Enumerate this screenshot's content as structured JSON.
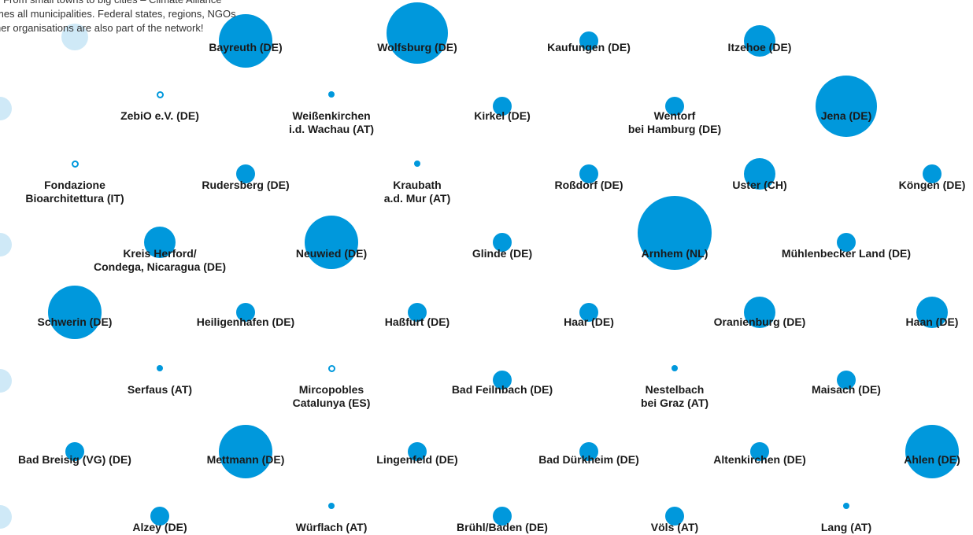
{
  "colors": {
    "bubble": "#0098dc",
    "faint_bubble": "#cfe9f7",
    "label_text": "#1a1a1a",
    "intro_text": "#333333"
  },
  "intro": {
    "lines": [
      "l. From small towns to big cities – Climate Alliance",
      "mes all municipalities. Federal states, regions, NGOs",
      "her organisations are also part of the network!"
    ]
  },
  "members": [
    {
      "lines": [
        "Bayreuth (DE)"
      ],
      "size": "large",
      "style": "filled"
    },
    {
      "lines": [
        "Wolfsburg (DE)"
      ],
      "size": "xlarge",
      "style": "filled"
    },
    {
      "lines": [
        "Kaufungen (DE)"
      ],
      "size": "small",
      "style": "filled"
    },
    {
      "lines": [
        "Itzehoe (DE)"
      ],
      "size": "medium",
      "style": "filled"
    },
    {
      "lines": [
        "ZebiO e.V. (DE)"
      ],
      "size": "tiny",
      "style": "ring"
    },
    {
      "lines": [
        "Weißenkirchen",
        "i.d. Wachau (AT)"
      ],
      "size": "dot",
      "style": "filled"
    },
    {
      "lines": [
        "Kirkel (DE)"
      ],
      "size": "small",
      "style": "filled"
    },
    {
      "lines": [
        "Wentorf",
        "bei Hamburg (DE)"
      ],
      "size": "small",
      "style": "filled"
    },
    {
      "lines": [
        "Jena (DE)"
      ],
      "size": "xlarge",
      "style": "filled"
    },
    {
      "lines": [
        "Fondazione",
        "Bioarchitettura (IT)"
      ],
      "size": "tiny",
      "style": "ring"
    },
    {
      "lines": [
        "Rudersberg (DE)"
      ],
      "size": "small",
      "style": "filled"
    },
    {
      "lines": [
        "Kraubath",
        "a.d. Mur (AT)"
      ],
      "size": "dot",
      "style": "filled"
    },
    {
      "lines": [
        "Roßdorf (DE)"
      ],
      "size": "small",
      "style": "filled"
    },
    {
      "lines": [
        "Uster (CH)"
      ],
      "size": "medium",
      "style": "filled"
    },
    {
      "lines": [
        "Köngen (DE)"
      ],
      "size": "small",
      "style": "filled"
    },
    {
      "lines": [
        "Kreis Herford/",
        "Condega, Nicaragua (DE)"
      ],
      "size": "medium",
      "style": "filled"
    },
    {
      "lines": [
        "Neuwied (DE)"
      ],
      "size": "large",
      "style": "filled"
    },
    {
      "lines": [
        "Glinde (DE)"
      ],
      "size": "small",
      "style": "filled"
    },
    {
      "lines": [
        "Arnhem (NL)"
      ],
      "size": "xxlarge",
      "style": "filled"
    },
    {
      "lines": [
        "Mühlenbecker Land (DE)"
      ],
      "size": "small",
      "style": "filled"
    },
    {
      "lines": [
        "Schwerin (DE)"
      ],
      "size": "large",
      "style": "filled"
    },
    {
      "lines": [
        "Heiligenhafen (DE)"
      ],
      "size": "small",
      "style": "filled"
    },
    {
      "lines": [
        "Haßfurt (DE)"
      ],
      "size": "small",
      "style": "filled"
    },
    {
      "lines": [
        "Haar (DE)"
      ],
      "size": "small",
      "style": "filled"
    },
    {
      "lines": [
        "Oranienburg (DE)"
      ],
      "size": "medium",
      "style": "filled"
    },
    {
      "lines": [
        "Haan (DE)"
      ],
      "size": "medium",
      "style": "filled"
    },
    {
      "lines": [
        "Serfaus (AT)"
      ],
      "size": "dot",
      "style": "filled"
    },
    {
      "lines": [
        "Mircopobles",
        "Catalunya (ES)"
      ],
      "size": "tiny",
      "style": "ring"
    },
    {
      "lines": [
        "Bad Feilnbach (DE)"
      ],
      "size": "small",
      "style": "filled"
    },
    {
      "lines": [
        "Nestelbach",
        "bei Graz (AT)"
      ],
      "size": "dot",
      "style": "filled"
    },
    {
      "lines": [
        "Maisach (DE)"
      ],
      "size": "small",
      "style": "filled"
    },
    {
      "lines": [
        "Bad Breisig (VG) (DE)"
      ],
      "size": "small",
      "style": "filled"
    },
    {
      "lines": [
        "Mettmann (DE)"
      ],
      "size": "large",
      "style": "filled"
    },
    {
      "lines": [
        "Lingenfeld (DE)"
      ],
      "size": "small",
      "style": "filled"
    },
    {
      "lines": [
        "Bad Dürkheim (DE)"
      ],
      "size": "small",
      "style": "filled"
    },
    {
      "lines": [
        "Altenkirchen (DE)"
      ],
      "size": "small",
      "style": "filled"
    },
    {
      "lines": [
        "Ahlen (DE)"
      ],
      "size": "large",
      "style": "filled"
    },
    {
      "lines": [
        "Alzey (DE)"
      ],
      "size": "small",
      "style": "filled"
    },
    {
      "lines": [
        "Würflach (AT)"
      ],
      "size": "dot",
      "style": "filled"
    },
    {
      "lines": [
        "Brühl/Baden (DE)"
      ],
      "size": "small",
      "style": "filled"
    },
    {
      "lines": [
        "Völs (AT)"
      ],
      "size": "small",
      "style": "filled"
    },
    {
      "lines": [
        "Lang (AT)"
      ],
      "size": "dot",
      "style": "filled"
    }
  ]
}
